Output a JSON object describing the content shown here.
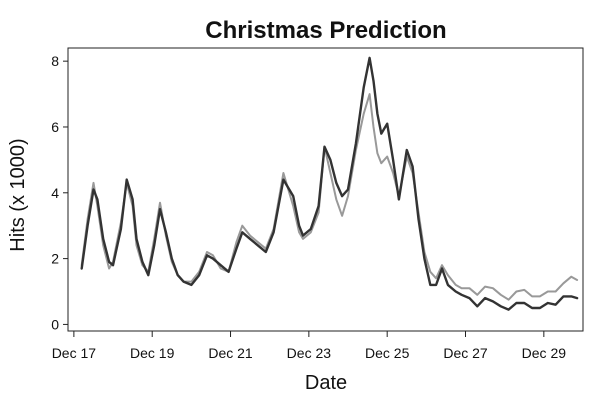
{
  "chart_data": {
    "type": "line",
    "title": "Christmas Prediction",
    "xlabel": "Date",
    "ylabel": "Hits (x 1000)",
    "x_ticks": [
      "Dec 17",
      "Dec 19",
      "Dec 21",
      "Dec 23",
      "Dec 25",
      "Dec 27",
      "Dec 29"
    ],
    "x_tick_days": [
      17,
      19,
      21,
      23,
      25,
      27,
      29
    ],
    "xlim": [
      16.85,
      30.0
    ],
    "y_ticks": [
      0,
      2,
      4,
      6,
      8
    ],
    "ylim": [
      -0.2,
      8.4
    ],
    "grid": false,
    "legend": "none",
    "series": [
      {
        "color": "#333333",
        "x": [
          17.2,
          17.35,
          17.5,
          17.6,
          17.75,
          17.9,
          18.0,
          18.2,
          18.35,
          18.5,
          18.6,
          18.75,
          18.9,
          19.05,
          19.2,
          19.35,
          19.5,
          19.65,
          19.8,
          20.0,
          20.2,
          20.4,
          20.55,
          20.75,
          20.95,
          21.15,
          21.3,
          21.5,
          21.7,
          21.9,
          22.1,
          22.35,
          22.6,
          22.75,
          22.85,
          23.05,
          23.25,
          23.4,
          23.55,
          23.7,
          23.85,
          24.0,
          24.2,
          24.4,
          24.55,
          24.65,
          24.75,
          24.85,
          25.0,
          25.15,
          25.3,
          25.5,
          25.65,
          25.8,
          25.95,
          26.1,
          26.25,
          26.4,
          26.55,
          26.75,
          26.9,
          27.1,
          27.3,
          27.5,
          27.7,
          27.9,
          28.1,
          28.3,
          28.5,
          28.7,
          28.9,
          29.1,
          29.3,
          29.5,
          29.7,
          29.85
        ],
        "values": [
          1.7,
          3.0,
          4.1,
          3.8,
          2.6,
          1.9,
          1.8,
          2.9,
          4.4,
          3.8,
          2.6,
          1.9,
          1.5,
          2.4,
          3.5,
          2.8,
          2.0,
          1.5,
          1.3,
          1.2,
          1.5,
          2.1,
          2.0,
          1.8,
          1.6,
          2.3,
          2.8,
          2.6,
          2.4,
          2.2,
          2.8,
          4.4,
          3.9,
          3.0,
          2.7,
          2.9,
          3.6,
          5.4,
          5.0,
          4.3,
          3.9,
          4.1,
          5.5,
          7.2,
          8.1,
          7.4,
          6.4,
          5.8,
          6.1,
          5.0,
          3.8,
          5.3,
          4.8,
          3.2,
          2.0,
          1.2,
          1.2,
          1.7,
          1.2,
          1.0,
          0.9,
          0.8,
          0.55,
          0.8,
          0.7,
          0.55,
          0.45,
          0.65,
          0.65,
          0.5,
          0.5,
          0.65,
          0.6,
          0.85,
          0.85,
          0.8
        ]
      },
      {
        "color": "#999999",
        "x": [
          17.2,
          17.35,
          17.5,
          17.6,
          17.75,
          17.9,
          18.0,
          18.2,
          18.35,
          18.5,
          18.6,
          18.75,
          18.9,
          19.05,
          19.2,
          19.35,
          19.5,
          19.65,
          19.8,
          20.0,
          20.2,
          20.4,
          20.55,
          20.75,
          20.95,
          21.15,
          21.3,
          21.5,
          21.7,
          21.9,
          22.1,
          22.35,
          22.6,
          22.75,
          22.85,
          23.05,
          23.25,
          23.4,
          23.55,
          23.7,
          23.85,
          24.0,
          24.2,
          24.4,
          24.55,
          24.65,
          24.75,
          24.85,
          25.0,
          25.15,
          25.3,
          25.5,
          25.65,
          25.8,
          25.95,
          26.1,
          26.25,
          26.4,
          26.55,
          26.75,
          26.9,
          27.1,
          27.3,
          27.5,
          27.7,
          27.9,
          28.1,
          28.3,
          28.5,
          28.7,
          28.9,
          29.1,
          29.3,
          29.5,
          29.7,
          29.85
        ],
        "values": [
          1.8,
          3.2,
          4.3,
          3.6,
          2.4,
          1.7,
          1.9,
          3.1,
          4.3,
          3.6,
          2.4,
          1.8,
          1.6,
          2.6,
          3.7,
          2.7,
          1.9,
          1.5,
          1.3,
          1.3,
          1.6,
          2.2,
          2.1,
          1.7,
          1.6,
          2.5,
          3.0,
          2.7,
          2.5,
          2.3,
          2.9,
          4.6,
          3.6,
          2.8,
          2.6,
          2.8,
          3.4,
          5.4,
          4.6,
          3.8,
          3.3,
          3.9,
          5.3,
          6.4,
          7.0,
          6.0,
          5.2,
          4.9,
          5.1,
          4.6,
          3.9,
          5.1,
          4.6,
          3.4,
          2.2,
          1.6,
          1.4,
          1.8,
          1.5,
          1.2,
          1.1,
          1.1,
          0.9,
          1.15,
          1.1,
          0.9,
          0.75,
          1.0,
          1.05,
          0.85,
          0.85,
          1.0,
          1.0,
          1.25,
          1.45,
          1.35
        ]
      }
    ]
  }
}
